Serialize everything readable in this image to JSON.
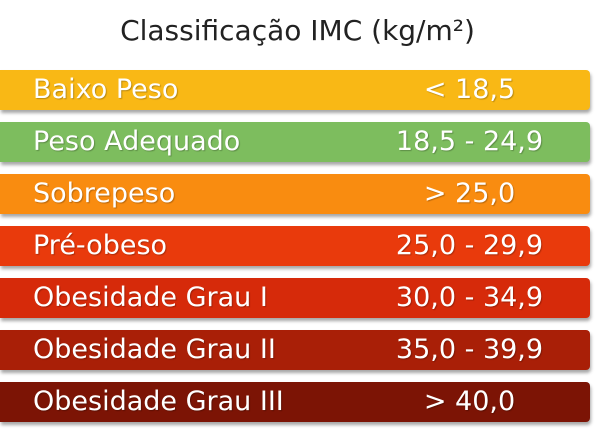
{
  "title": "Classificação IMC (kg/m²)",
  "rows": [
    {
      "label": "Baixo Peso",
      "range": "< 18,5",
      "color": "#f9b815"
    },
    {
      "label": "Peso Adequado",
      "range": "18,5 - 24,9",
      "color": "#7dbd5e"
    },
    {
      "label": "Sobrepeso",
      "range": "> 25,0",
      "color": "#f98c10"
    },
    {
      "label": "Pré-obeso",
      "range": "25,0 - 29,9",
      "color": "#e93a0c"
    },
    {
      "label": "Obesidade Grau I",
      "range": "30,0 - 34,9",
      "color": "#d62a0a"
    },
    {
      "label": "Obesidade Grau II",
      "range": "35,0 - 39,9",
      "color": "#a91f07"
    },
    {
      "label": "Obesidade Grau III",
      "range": "> 40,0",
      "color": "#7c1405"
    }
  ]
}
